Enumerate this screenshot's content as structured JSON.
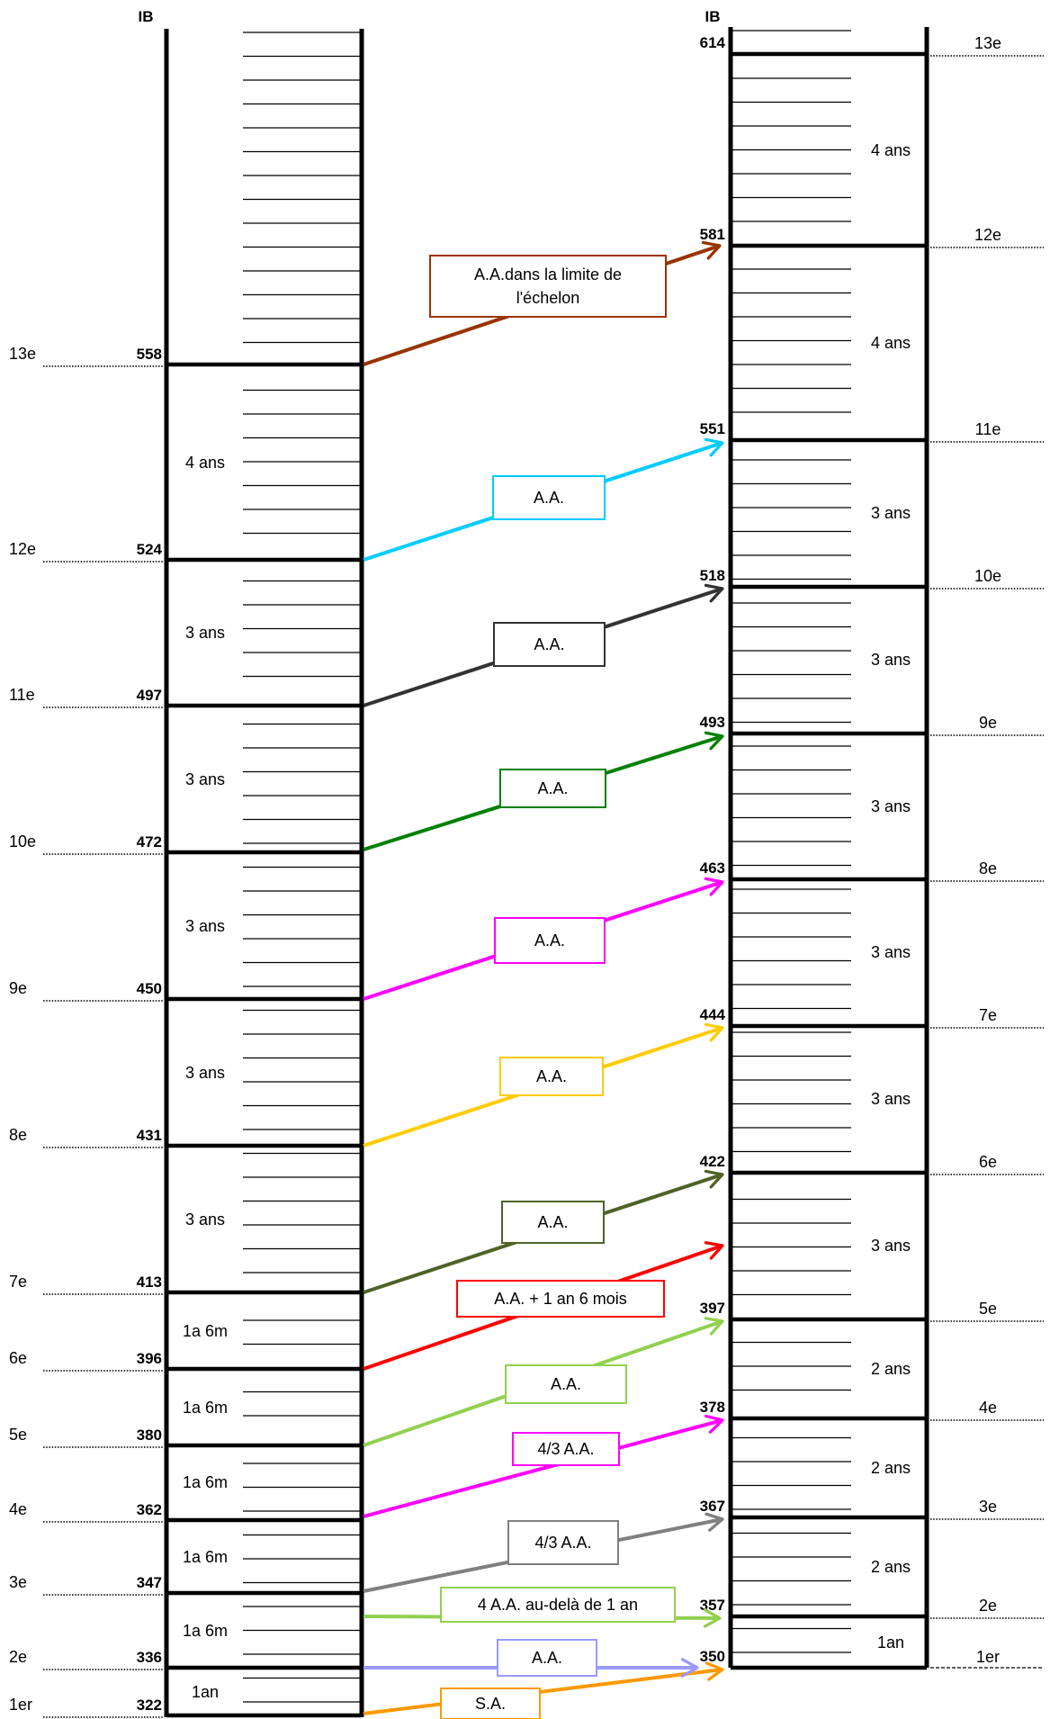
{
  "header": {
    "left": "IB",
    "right": "IB"
  },
  "left_scale": {
    "steps": [
      {
        "echelon": "1er",
        "ib": "322"
      },
      {
        "echelon": "2e",
        "ib": "336"
      },
      {
        "echelon": "3e",
        "ib": "347"
      },
      {
        "echelon": "4e",
        "ib": "362"
      },
      {
        "echelon": "5e",
        "ib": "380"
      },
      {
        "echelon": "6e",
        "ib": "396"
      },
      {
        "echelon": "7e",
        "ib": "413"
      },
      {
        "echelon": "8e",
        "ib": "431"
      },
      {
        "echelon": "9e",
        "ib": "450"
      },
      {
        "echelon": "10e",
        "ib": "472"
      },
      {
        "echelon": "11e",
        "ib": "497"
      },
      {
        "echelon": "12e",
        "ib": "524"
      },
      {
        "echelon": "13e",
        "ib": "558"
      }
    ],
    "durations": [
      "1an",
      "1a 6m",
      "1a 6m",
      "1a 6m",
      "1a 6m",
      "1a 6m",
      "3 ans",
      "3 ans",
      "3 ans",
      "3 ans",
      "3 ans",
      "4 ans"
    ]
  },
  "right_scale": {
    "steps": [
      {
        "echelon": "1er",
        "ib": "350"
      },
      {
        "echelon": "2e",
        "ib": "357"
      },
      {
        "echelon": "3e",
        "ib": "367"
      },
      {
        "echelon": "4e",
        "ib": "378"
      },
      {
        "echelon": "5e",
        "ib": "397"
      },
      {
        "echelon": "6e",
        "ib": "422"
      },
      {
        "echelon": "7e",
        "ib": "444"
      },
      {
        "echelon": "8e",
        "ib": "463"
      },
      {
        "echelon": "9e",
        "ib": "493"
      },
      {
        "echelon": "10e",
        "ib": "518"
      },
      {
        "echelon": "11e",
        "ib": "551"
      },
      {
        "echelon": "12e",
        "ib": "581"
      },
      {
        "echelon": "13e",
        "ib": "614"
      }
    ],
    "durations": [
      "1an",
      "2 ans",
      "2 ans",
      "2 ans",
      "3 ans",
      "3 ans",
      "3 ans",
      "3 ans",
      "3 ans",
      "3 ans",
      "4 ans",
      "4 ans"
    ]
  },
  "transitions": [
    {
      "from": "1er",
      "to": "1er",
      "label": "S.A.",
      "color": "#ff9900"
    },
    {
      "from": "2e",
      "to": "1er",
      "label": "A.A.",
      "color": "#9999ff"
    },
    {
      "from": "3e",
      "to": "2e",
      "label": "4 A.A. au-delà de 1 an",
      "color": "#92d050"
    },
    {
      "from": "4e",
      "to": "3e",
      "label": "4/3 A.A.",
      "color": "#808080"
    },
    {
      "from": "5e",
      "to": "4e",
      "label": "4/3 A.A.",
      "color": "#ff00ff"
    },
    {
      "from": "6e",
      "to": "5e",
      "label": "A.A.",
      "color": "#92d050"
    },
    {
      "from": "7e",
      "to": "6e",
      "label": "A.A. + 1 an 6 mois",
      "color": "#ff0000"
    },
    {
      "from": "7e",
      "to": "7e",
      "label": "A.A.",
      "color": "#4f6228"
    },
    {
      "from": "8e",
      "to": "8e",
      "label": "A.A.",
      "color": "#ffcc00"
    },
    {
      "from": "9e",
      "to": "9e",
      "label": "A.A.",
      "color": "#ff00ff"
    },
    {
      "from": "10e",
      "to": "10e",
      "label": "A.A.",
      "color": "#008000"
    },
    {
      "from": "11e",
      "to": "11e",
      "label": "A.A.",
      "color": "#333333"
    },
    {
      "from": "12e",
      "to": "12e",
      "label": "A.A.",
      "color": "#00ccff"
    },
    {
      "from": "13e",
      "to": "13e",
      "label": "A.A.dans la limite de l'échelon",
      "color": "#993300"
    }
  ]
}
